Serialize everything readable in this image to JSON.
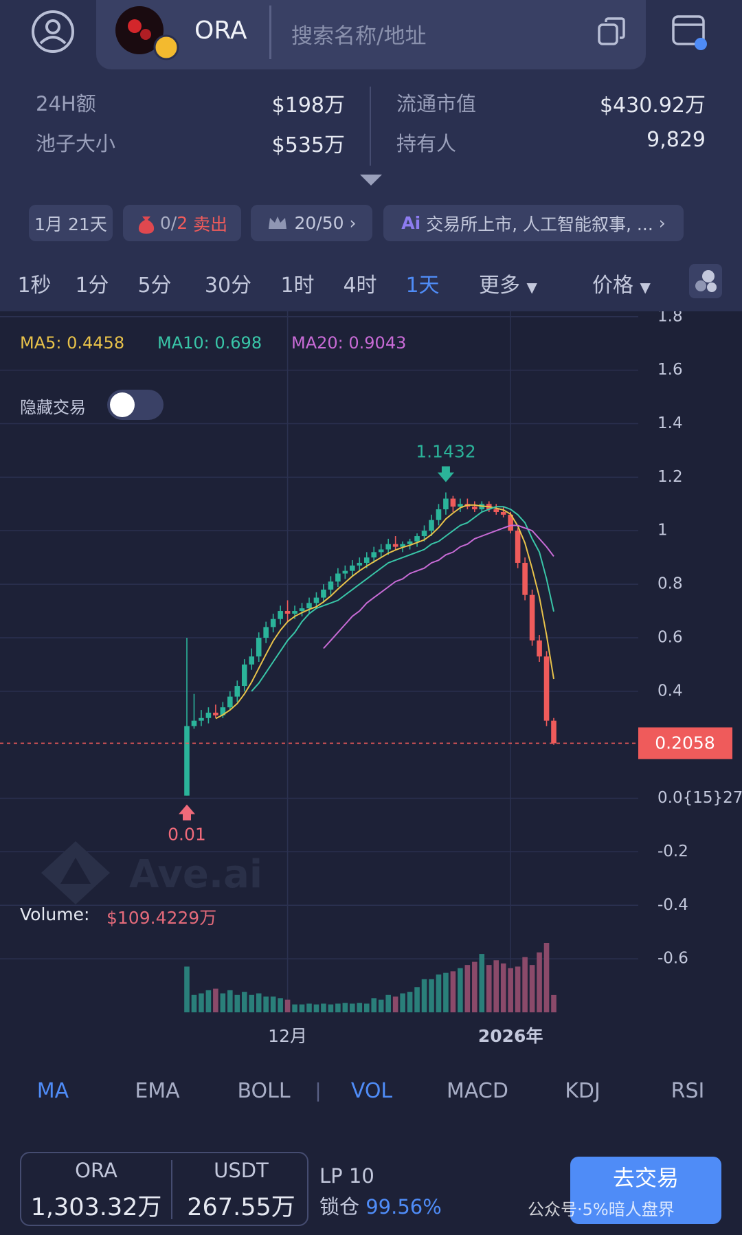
{
  "header": {
    "token": "ORA",
    "search_placeholder": "搜索名称/地址"
  },
  "stats": [
    {
      "label": "24H额",
      "value": "$198万"
    },
    {
      "label": "流通市值",
      "value": "$430.92万"
    },
    {
      "label": "池子大小",
      "value": "$535万"
    },
    {
      "label": "持有人",
      "value": "9,829"
    }
  ],
  "tags": {
    "age": "1月 21天",
    "sell_count": "0/",
    "sell_limit": "2",
    "sell_text": "卖出",
    "top": "20/50",
    "ai": "交易所上市, 人工智能叙事, ..."
  },
  "timeframes": {
    "items": [
      "1秒",
      "1分",
      "5分",
      "30分",
      "1时",
      "4时",
      "1天"
    ],
    "active": 6,
    "more": "更多",
    "price": "价格"
  },
  "hide_trades": "隐藏交易",
  "watermark": "Ave.ai",
  "chart_data": {
    "type": "candlestick",
    "categories": [
      null,
      null,
      null,
      null,
      null,
      null,
      null,
      null,
      null,
      null,
      null,
      null,
      null,
      null,
      "12月",
      null,
      null,
      null,
      null,
      null,
      null,
      null,
      null,
      null,
      null,
      null,
      null,
      null,
      null,
      null,
      null,
      null,
      null,
      null,
      null,
      null,
      null,
      null,
      null,
      null,
      null,
      null,
      null,
      null,
      null,
      "2026年",
      null,
      null,
      null,
      null,
      null,
      null
    ],
    "open": [
      0.01,
      0.27,
      0.29,
      0.3,
      0.32,
      0.31,
      0.34,
      0.38,
      0.42,
      0.5,
      0.53,
      0.6,
      0.64,
      0.67,
      0.7,
      0.69,
      0.7,
      0.71,
      0.73,
      0.75,
      0.78,
      0.81,
      0.84,
      0.85,
      0.87,
      0.88,
      0.9,
      0.92,
      0.93,
      0.95,
      0.94,
      0.95,
      0.96,
      0.98,
      1.0,
      1.04,
      1.08,
      1.12,
      1.09,
      1.1,
      1.09,
      1.08,
      1.1,
      1.08,
      1.07,
      1.06,
      1.0,
      0.88,
      0.76,
      0.59,
      0.53,
      0.29
    ],
    "high": [
      0.6,
      0.39,
      0.33,
      0.34,
      0.35,
      0.36,
      0.4,
      0.44,
      0.52,
      0.56,
      0.62,
      0.66,
      0.69,
      0.72,
      0.74,
      0.72,
      0.73,
      0.75,
      0.77,
      0.8,
      0.83,
      0.86,
      0.87,
      0.89,
      0.9,
      0.92,
      0.94,
      0.95,
      0.97,
      0.98,
      0.96,
      0.97,
      0.99,
      1.02,
      1.06,
      1.1,
      1.1432,
      1.13,
      1.12,
      1.12,
      1.11,
      1.11,
      1.11,
      1.1,
      1.09,
      1.07,
      1.01,
      0.9,
      0.78,
      0.61,
      0.55,
      0.3
    ],
    "low": [
      0.01,
      0.26,
      0.27,
      0.28,
      0.3,
      0.3,
      0.33,
      0.36,
      0.4,
      0.48,
      0.51,
      0.58,
      0.62,
      0.65,
      0.66,
      0.67,
      0.68,
      0.69,
      0.71,
      0.73,
      0.76,
      0.79,
      0.82,
      0.83,
      0.85,
      0.86,
      0.88,
      0.9,
      0.91,
      0.93,
      0.92,
      0.93,
      0.94,
      0.96,
      0.98,
      1.02,
      1.06,
      1.07,
      1.07,
      1.08,
      1.07,
      1.07,
      1.07,
      1.06,
      1.05,
      0.99,
      0.86,
      0.74,
      0.57,
      0.51,
      0.27,
      0.2
    ],
    "close": [
      0.27,
      0.29,
      0.3,
      0.32,
      0.31,
      0.34,
      0.38,
      0.42,
      0.5,
      0.53,
      0.6,
      0.64,
      0.67,
      0.7,
      0.69,
      0.7,
      0.71,
      0.73,
      0.75,
      0.78,
      0.81,
      0.84,
      0.85,
      0.87,
      0.88,
      0.9,
      0.92,
      0.93,
      0.95,
      0.94,
      0.95,
      0.96,
      0.98,
      1.0,
      1.04,
      1.08,
      1.12,
      1.09,
      1.1,
      1.09,
      1.08,
      1.1,
      1.08,
      1.07,
      1.06,
      1.0,
      0.88,
      0.76,
      0.59,
      0.53,
      0.29,
      0.2058
    ],
    "up_color": "#2bb49a",
    "down_color": "#ef5b5b",
    "series": [
      {
        "name": "MA5: 0.4458",
        "color": "#e8c24a",
        "values": [
          null,
          null,
          null,
          null,
          0.298,
          0.312,
          0.33,
          0.354,
          0.39,
          0.434,
          0.486,
          0.538,
          0.588,
          0.628,
          0.66,
          0.68,
          0.694,
          0.706,
          0.716,
          0.734,
          0.756,
          0.782,
          0.806,
          0.83,
          0.85,
          0.868,
          0.884,
          0.9,
          0.916,
          0.928,
          0.938,
          0.946,
          0.956,
          0.966,
          0.986,
          1.012,
          1.044,
          1.066,
          1.086,
          1.096,
          1.096,
          1.092,
          1.09,
          1.084,
          1.078,
          1.062,
          1.018,
          0.954,
          0.858,
          0.752,
          0.61,
          0.4458
        ]
      },
      {
        "name": "MA10: 0.698",
        "color": "#39c6a8",
        "values": [
          null,
          null,
          null,
          null,
          null,
          null,
          null,
          null,
          null,
          0.4,
          0.43,
          0.47,
          0.51,
          0.55,
          0.59,
          0.62,
          0.66,
          0.69,
          0.71,
          0.72,
          0.73,
          0.74,
          0.76,
          0.78,
          0.8,
          0.82,
          0.84,
          0.86,
          0.88,
          0.89,
          0.9,
          0.91,
          0.92,
          0.93,
          0.95,
          0.96,
          0.98,
          1.0,
          1.02,
          1.03,
          1.05,
          1.07,
          1.08,
          1.09,
          1.09,
          1.08,
          1.06,
          1.03,
          0.97,
          0.92,
          0.82,
          0.698
        ]
      },
      {
        "name": "MA20: 0.9043",
        "color": "#c86bd6",
        "values": [
          null,
          null,
          null,
          null,
          null,
          null,
          null,
          null,
          null,
          null,
          null,
          null,
          null,
          null,
          null,
          null,
          null,
          null,
          null,
          0.56,
          0.59,
          0.62,
          0.65,
          0.68,
          0.7,
          0.73,
          0.75,
          0.77,
          0.79,
          0.81,
          0.82,
          0.84,
          0.85,
          0.86,
          0.88,
          0.89,
          0.91,
          0.92,
          0.94,
          0.95,
          0.97,
          0.98,
          0.99,
          1.0,
          1.01,
          1.02,
          1.02,
          1.01,
          1.0,
          0.97,
          0.94,
          0.9043
        ]
      }
    ],
    "volume": {
      "name": "Volume:",
      "up_color": "#2a7f7a",
      "down_color": "#8b4a6a",
      "values": [
        290,
        110,
        120,
        140,
        150,
        120,
        140,
        110,
        130,
        110,
        120,
        100,
        100,
        90,
        80,
        50,
        50,
        55,
        50,
        55,
        50,
        55,
        60,
        55,
        60,
        55,
        90,
        80,
        110,
        100,
        120,
        130,
        160,
        210,
        210,
        240,
        250,
        260,
        280,
        300,
        320,
        370,
        300,
        330,
        310,
        280,
        290,
        350,
        300,
        380,
        440,
        109.4229
      ],
      "value_labels": [
        null,
        null,
        null,
        null,
        null,
        null,
        null,
        null,
        null,
        null,
        null,
        null,
        null,
        null,
        null,
        null,
        null,
        null,
        null,
        null,
        null,
        null,
        null,
        null,
        null,
        null,
        null,
        null,
        null,
        null,
        null,
        null,
        null,
        null,
        null,
        null,
        null,
        null,
        null,
        null,
        null,
        null,
        null,
        null,
        null,
        null,
        null,
        null,
        null,
        null,
        null,
        "$109.4229万"
      ]
    },
    "ylim": [
      -0.8,
      1.82
    ],
    "yticks": [
      1.8,
      1.6,
      1.4,
      1.2,
      1,
      0.8,
      0.6,
      0.4,
      {
        "value": 0,
        "label": "0.0{15}27"
      },
      -0.2,
      -0.4,
      -0.6
    ],
    "grid": true
  },
  "indicators": {
    "main": [
      "MA",
      "EMA",
      "BOLL"
    ],
    "separator": "|",
    "sub": [
      "VOL",
      "MACD",
      "KDJ",
      "RSI"
    ],
    "main_active": 0,
    "sub_active": 0
  },
  "footer": {
    "token_a": "ORA",
    "token_a_amount": "1,303.32万",
    "token_b": "USDT",
    "token_b_amount": "267.55万",
    "lp": "LP 10",
    "lock_label": "锁仓",
    "lock_value": "99.56%",
    "trade_button": "去交易",
    "wechat_watermark": "公众号·5%暗人盘界"
  }
}
